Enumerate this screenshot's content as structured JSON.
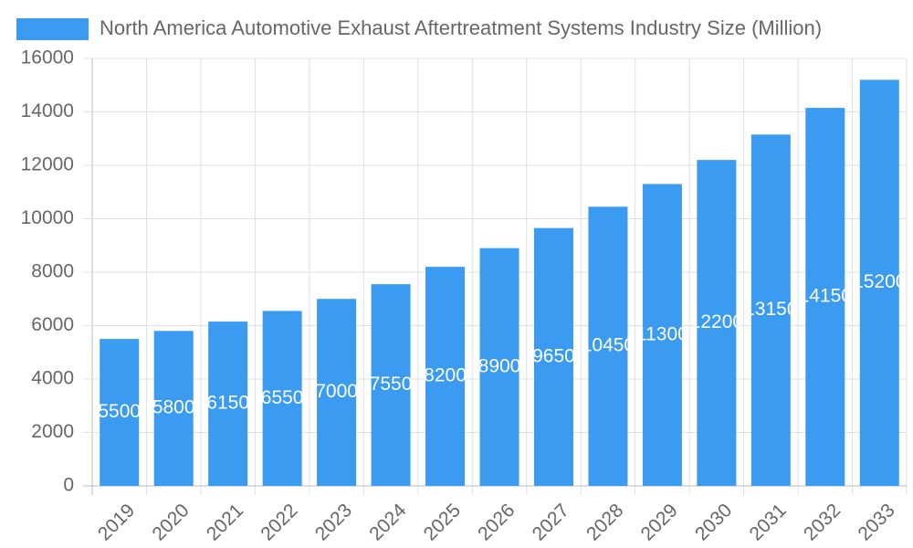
{
  "chart_data": {
    "type": "bar",
    "categories": [
      "2019",
      "2020",
      "2021",
      "2022",
      "2023",
      "2024",
      "2025",
      "2026",
      "2027",
      "2028",
      "2029",
      "2030",
      "2031",
      "2032",
      "2033"
    ],
    "series": [
      {
        "name": "North America Automotive Exhaust Aftertreatment Systems Industry Size (Million)",
        "color": "#3a9bf0",
        "values": [
          5500,
          5800,
          6150,
          6550,
          7000,
          7550,
          8200,
          8900,
          9650,
          10450,
          11300,
          12200,
          13150,
          14150,
          15200
        ]
      }
    ],
    "ylim": [
      0,
      16000
    ],
    "yticks": [
      0,
      2000,
      4000,
      6000,
      8000,
      10000,
      12000,
      14000,
      16000
    ],
    "grid": true
  }
}
